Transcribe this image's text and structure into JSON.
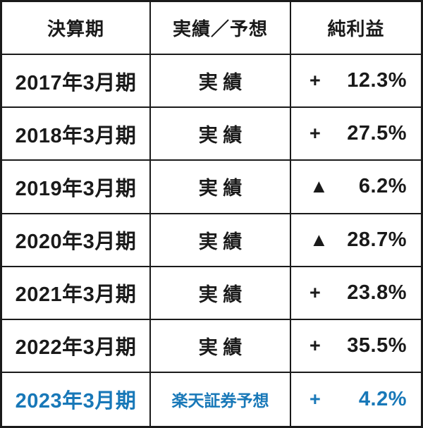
{
  "chart_data": {
    "type": "table",
    "columns": [
      "決算期",
      "実績／予想",
      "純利益"
    ],
    "rows": [
      {
        "period": "2017年3月期",
        "source": "実 績",
        "sign": "+",
        "value": "12.3%",
        "net_profit_pct": 12.3
      },
      {
        "period": "2018年3月期",
        "source": "実 績",
        "sign": "+",
        "value": "27.5%",
        "net_profit_pct": 27.5
      },
      {
        "period": "2019年3月期",
        "source": "実 績",
        "sign": "▲",
        "value": "6.2%",
        "net_profit_pct": -6.2
      },
      {
        "period": "2020年3月期",
        "source": "実 績",
        "sign": "▲",
        "value": "28.7%",
        "net_profit_pct": -28.7
      },
      {
        "period": "2021年3月期",
        "source": "実 績",
        "sign": "+",
        "value": "23.8%",
        "net_profit_pct": 23.8
      },
      {
        "period": "2022年3月期",
        "source": "実 績",
        "sign": "+",
        "value": "35.5%",
        "net_profit_pct": 35.5
      },
      {
        "period": "2023年3月期",
        "source": "楽天証券予想",
        "sign": "+",
        "value": "4.2%",
        "net_profit_pct": 4.2
      }
    ],
    "colors": {
      "text": "#1a1a1a",
      "border": "#1a1a1a",
      "forecast_blue": "#1878b8",
      "background": "#ffffff"
    }
  }
}
